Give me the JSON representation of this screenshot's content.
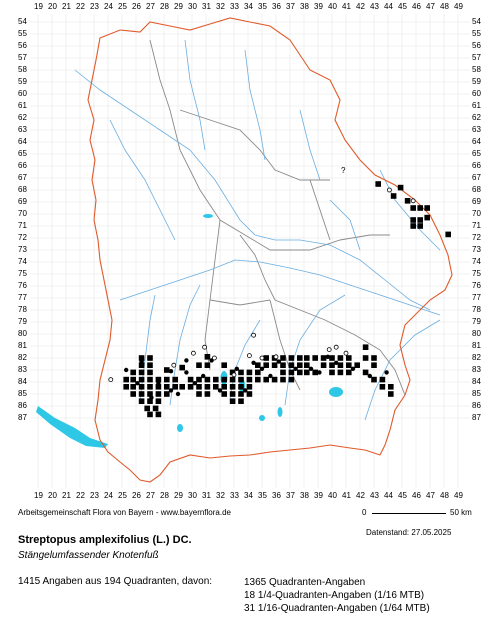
{
  "map": {
    "x_grid_labels": [
      "19",
      "20",
      "21",
      "22",
      "23",
      "24",
      "25",
      "26",
      "27",
      "28",
      "29",
      "30",
      "31",
      "32",
      "33",
      "34",
      "35",
      "36",
      "37",
      "38",
      "39",
      "40",
      "41",
      "42",
      "43",
      "44",
      "45",
      "46",
      "47",
      "48",
      "49"
    ],
    "y_grid_labels": [
      "54",
      "55",
      "56",
      "57",
      "58",
      "59",
      "60",
      "61",
      "62",
      "63",
      "64",
      "65",
      "66",
      "67",
      "68",
      "69",
      "70",
      "71",
      "72",
      "73",
      "74",
      "75",
      "76",
      "77",
      "78",
      "79",
      "80",
      "81",
      "82",
      "83",
      "84",
      "85",
      "86",
      "87"
    ],
    "question_mark": "?",
    "colors": {
      "border": "#e05a2b",
      "district": "#8a8a8a",
      "river": "#6aaee0",
      "lake": "#2ec8e6",
      "grid": "#cfcfcf"
    }
  },
  "occurrences": {
    "full_quadrant": [
      [
        43.3,
        67.5
      ],
      [
        44.4,
        68.5
      ],
      [
        44.9,
        67.8
      ],
      [
        45.4,
        68.9
      ],
      [
        45.8,
        69.5
      ],
      [
        46.3,
        69.5
      ],
      [
        46.8,
        69.5
      ],
      [
        45.8,
        70.5
      ],
      [
        46.3,
        70.5
      ],
      [
        46.8,
        70.3
      ],
      [
        45.8,
        71.0
      ],
      [
        46.3,
        71.0
      ],
      [
        48.3,
        71.7
      ],
      [
        26.4,
        82.0
      ],
      [
        27.0,
        82.0
      ],
      [
        26.4,
        82.6
      ],
      [
        27.0,
        82.6
      ],
      [
        25.8,
        83.2
      ],
      [
        26.4,
        83.2
      ],
      [
        27.0,
        83.2
      ],
      [
        28.2,
        83.0
      ],
      [
        29.3,
        82.8
      ],
      [
        30.5,
        82.6
      ],
      [
        31.1,
        82.6
      ],
      [
        25.3,
        83.8
      ],
      [
        25.8,
        83.8
      ],
      [
        26.4,
        83.8
      ],
      [
        27.0,
        83.8
      ],
      [
        27.6,
        83.8
      ],
      [
        28.2,
        83.8
      ],
      [
        28.8,
        83.8
      ],
      [
        29.9,
        83.8
      ],
      [
        30.5,
        83.8
      ],
      [
        31.1,
        83.8
      ],
      [
        31.7,
        83.8
      ],
      [
        32.3,
        83.8
      ],
      [
        32.9,
        83.8
      ],
      [
        33.5,
        83.8
      ],
      [
        25.3,
        84.4
      ],
      [
        25.8,
        84.4
      ],
      [
        26.4,
        84.4
      ],
      [
        27.0,
        84.4
      ],
      [
        27.6,
        84.4
      ],
      [
        28.2,
        84.4
      ],
      [
        28.8,
        84.4
      ],
      [
        29.3,
        84.4
      ],
      [
        29.9,
        84.4
      ],
      [
        30.5,
        84.4
      ],
      [
        31.1,
        84.4
      ],
      [
        31.7,
        84.4
      ],
      [
        32.3,
        84.4
      ],
      [
        32.9,
        84.4
      ],
      [
        33.5,
        84.4
      ],
      [
        34.1,
        84.4
      ],
      [
        25.8,
        85.0
      ],
      [
        26.4,
        85.0
      ],
      [
        27.0,
        85.0
      ],
      [
        27.6,
        85.0
      ],
      [
        28.2,
        85.0
      ],
      [
        32.3,
        85.0
      ],
      [
        32.9,
        85.0
      ],
      [
        33.5,
        85.0
      ],
      [
        34.1,
        85.0
      ],
      [
        26.4,
        85.6
      ],
      [
        27.0,
        85.6
      ],
      [
        27.6,
        85.6
      ],
      [
        32.9,
        85.6
      ],
      [
        33.5,
        85.6
      ],
      [
        26.8,
        86.2
      ],
      [
        27.4,
        86.2
      ],
      [
        27.0,
        86.7
      ],
      [
        27.6,
        86.7
      ],
      [
        31.1,
        81.9
      ],
      [
        32.3,
        82.6
      ],
      [
        32.9,
        83.2
      ],
      [
        33.5,
        83.2
      ],
      [
        34.1,
        83.2
      ],
      [
        34.7,
        83.2
      ],
      [
        34.1,
        83.8
      ],
      [
        34.7,
        83.8
      ],
      [
        35.3,
        83.8
      ],
      [
        35.9,
        83.8
      ],
      [
        34.7,
        82.6
      ],
      [
        35.3,
        82.6
      ],
      [
        35.9,
        82.6
      ],
      [
        36.5,
        82.6
      ],
      [
        37.1,
        82.6
      ],
      [
        37.7,
        82.6
      ],
      [
        38.2,
        82.6
      ],
      [
        35.3,
        82.0
      ],
      [
        35.9,
        82.0
      ],
      [
        36.5,
        82.0
      ],
      [
        37.1,
        82.0
      ],
      [
        37.7,
        82.0
      ],
      [
        38.2,
        82.0
      ],
      [
        38.8,
        82.0
      ],
      [
        39.4,
        82.0
      ],
      [
        40.0,
        82.0
      ],
      [
        40.6,
        82.0
      ],
      [
        41.2,
        82.0
      ],
      [
        36.5,
        83.2
      ],
      [
        37.1,
        83.2
      ],
      [
        37.7,
        83.2
      ],
      [
        38.2,
        83.2
      ],
      [
        38.8,
        83.2
      ],
      [
        39.4,
        82.6
      ],
      [
        40.0,
        82.6
      ],
      [
        40.6,
        82.6
      ],
      [
        41.2,
        82.6
      ],
      [
        41.8,
        82.6
      ],
      [
        40.0,
        83.2
      ],
      [
        40.6,
        83.2
      ],
      [
        41.2,
        83.2
      ],
      [
        42.4,
        81.1
      ],
      [
        42.4,
        82.0
      ],
      [
        43.0,
        82.0
      ],
      [
        43.0,
        82.6
      ],
      [
        42.4,
        83.2
      ],
      [
        43.0,
        83.8
      ],
      [
        43.6,
        83.8
      ],
      [
        43.6,
        84.4
      ],
      [
        44.2,
        84.4
      ],
      [
        44.2,
        85.0
      ],
      [
        36.5,
        83.8
      ],
      [
        37.1,
        83.8
      ],
      [
        30.5,
        85.0
      ],
      [
        31.1,
        85.0
      ]
    ],
    "quarter": [
      [
        26.4,
        82.3
      ],
      [
        25.3,
        83.0
      ],
      [
        27.6,
        84.1
      ],
      [
        28.5,
        83.1
      ],
      [
        29.6,
        83.2
      ],
      [
        30.2,
        84.1
      ],
      [
        31.4,
        82.2
      ],
      [
        33.2,
        82.9
      ],
      [
        34.4,
        82.4
      ],
      [
        35.0,
        82.9
      ],
      [
        36.2,
        82.3
      ],
      [
        37.4,
        82.9
      ],
      [
        38.5,
        82.9
      ],
      [
        39.7,
        81.9
      ],
      [
        40.3,
        82.4
      ],
      [
        41.5,
        82.9
      ],
      [
        42.7,
        83.5
      ],
      [
        32.0,
        84.7
      ],
      [
        29.6,
        82.2
      ],
      [
        28.5,
        84.7
      ],
      [
        26.1,
        84.1
      ],
      [
        30.8,
        83.5
      ],
      [
        33.8,
        84.7
      ],
      [
        35.6,
        83.5
      ],
      [
        39.1,
        83.2
      ],
      [
        43.9,
        83.2
      ],
      [
        27.1,
        85.3
      ],
      [
        29.0,
        85.0
      ]
    ],
    "sixteenth": [
      [
        30.9,
        81.1
      ],
      [
        34.4,
        80.1
      ],
      [
        35.0,
        82.0
      ],
      [
        34.1,
        81.8
      ],
      [
        39.8,
        81.3
      ],
      [
        40.3,
        81.1
      ],
      [
        31.6,
        82.0
      ],
      [
        30.1,
        81.6
      ],
      [
        45.8,
        68.9
      ],
      [
        24.2,
        83.8
      ],
      [
        33.0,
        83.4
      ],
      [
        36.0,
        81.9
      ],
      [
        41.0,
        81.6
      ],
      [
        28.7,
        82.6
      ],
      [
        44.1,
        68.0
      ]
    ]
  },
  "footer": {
    "credit": "Arbeitsgemeinschaft Flora von Bayern - www.bayernflora.de",
    "scale_zero": "0",
    "scale_km": "50 km",
    "datenstand": "Datenstand: 27.05.2025",
    "species_name": "Streptopus amplexifolius (L.) DC.",
    "common_name": "Stängelumfassender Knotenfuß",
    "total": "1415 Angaben aus 194 Quadranten, davon:",
    "line1": "1365 Quadranten-Angaben",
    "line2": "18 1/4-Quadranten-Angaben (1/16 MTB)",
    "line3": "31 1/16-Quadranten-Angaben (1/64 MTB)"
  }
}
